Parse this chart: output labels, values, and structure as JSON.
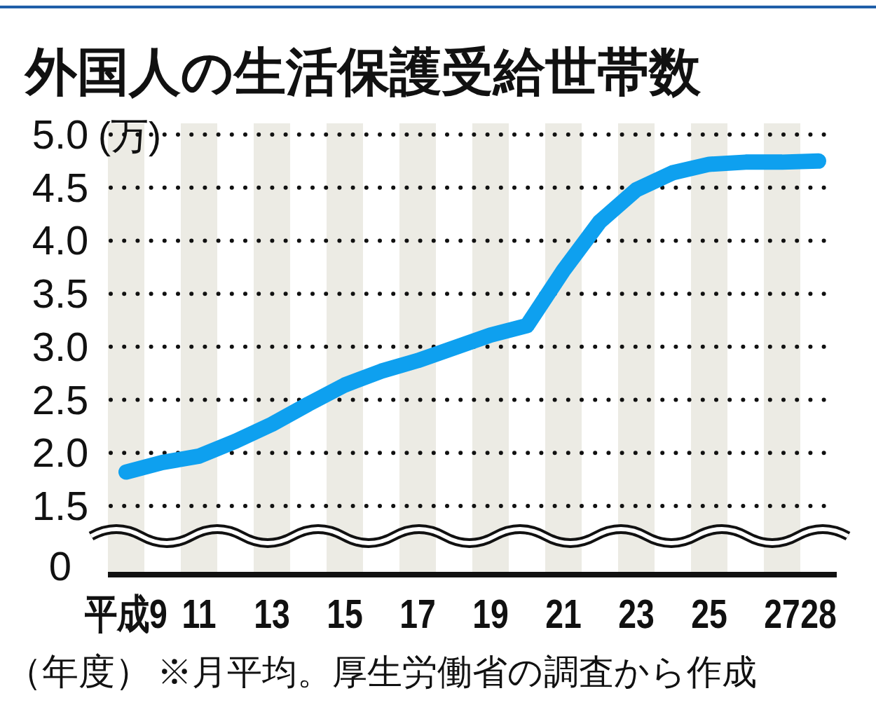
{
  "chart_data": {
    "type": "line",
    "title": "外国人の生活保護受給世帯数",
    "ylabel": "(万)",
    "xlabel": "（年度）",
    "annotations": [
      "※月平均。厚生労働省の調査から作成",
      "0"
    ],
    "x": [
      9,
      10,
      11,
      12,
      13,
      14,
      15,
      16,
      17,
      18,
      19,
      20,
      21,
      22,
      23,
      24,
      25,
      26,
      27,
      28
    ],
    "series": [
      {
        "color": "#0ea0ef",
        "values": [
          1.82,
          1.91,
          1.97,
          2.11,
          2.27,
          2.46,
          2.64,
          2.77,
          2.87,
          2.99,
          3.11,
          3.2,
          3.72,
          4.18,
          4.48,
          4.64,
          4.72,
          4.74,
          4.74,
          4.75
        ]
      }
    ],
    "xlim": [
      8.5,
      28.5
    ],
    "xticks": [
      {
        "value": 9,
        "label": "平成9"
      },
      11,
      13,
      15,
      17,
      19,
      21,
      23,
      25,
      27,
      28
    ],
    "ylim": [
      1.5,
      5.0
    ],
    "yticks": [
      1.5,
      {
        "value": 2.0,
        "label": "2.0"
      },
      2.5,
      {
        "value": 3.0,
        "label": "3.0"
      },
      3.5,
      {
        "value": 4.0,
        "label": "4.0"
      },
      4.5,
      {
        "value": 5.0,
        "label": "5.0"
      }
    ],
    "bands": [
      {
        "axis": "x",
        "from": 8.5,
        "to": 9.5,
        "color": "#ecebe4"
      },
      {
        "axis": "x",
        "from": 10.5,
        "to": 11.5,
        "color": "#ecebe4"
      },
      {
        "axis": "x",
        "from": 12.5,
        "to": 13.5,
        "color": "#ecebe4"
      },
      {
        "axis": "x",
        "from": 14.5,
        "to": 15.5,
        "color": "#ecebe4"
      },
      {
        "axis": "x",
        "from": 16.5,
        "to": 17.5,
        "color": "#ecebe4"
      },
      {
        "axis": "x",
        "from": 18.5,
        "to": 19.5,
        "color": "#ecebe4"
      },
      {
        "axis": "x",
        "from": 20.5,
        "to": 21.5,
        "color": "#ecebe4"
      },
      {
        "axis": "x",
        "from": 22.5,
        "to": 23.5,
        "color": "#ecebe4"
      },
      {
        "axis": "x",
        "from": 24.5,
        "to": 25.5,
        "color": "#ecebe4"
      },
      {
        "axis": "x",
        "from": 26.5,
        "to": 27.5,
        "color": "#ecebe4"
      }
    ],
    "grid": "y",
    "marker": "none",
    "line_style": "solid"
  }
}
